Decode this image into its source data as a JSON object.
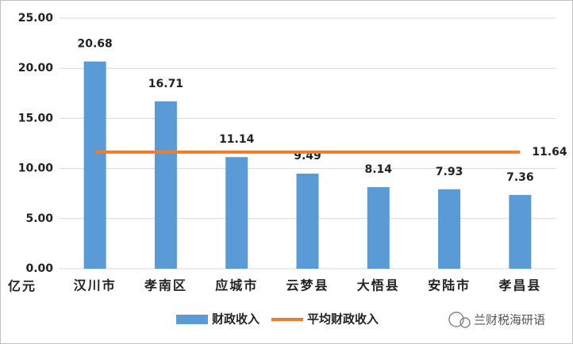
{
  "chart_data": {
    "type": "bar",
    "ylabel": "亿元",
    "categories": [
      "汉川市",
      "孝南区",
      "应城市",
      "云梦县",
      "大悟县",
      "安陆市",
      "孝昌县"
    ],
    "series": [
      {
        "name": "财政收入",
        "type": "bar",
        "color": "#5b9bd5",
        "values": [
          20.68,
          16.71,
          11.14,
          9.49,
          8.14,
          7.93,
          7.36
        ]
      },
      {
        "name": "平均财政收入",
        "type": "line",
        "color": "#ed7d31",
        "values": [
          11.64,
          11.64,
          11.64,
          11.64,
          11.64,
          11.64,
          11.64
        ]
      }
    ],
    "ylim": [
      0,
      25
    ],
    "yticks": [
      {
        "value": 0,
        "label": "0.00"
      },
      {
        "value": 5,
        "label": "5.00"
      },
      {
        "value": 10,
        "label": "10.00"
      },
      {
        "value": 15,
        "label": "15.00"
      },
      {
        "value": 20,
        "label": "20.00"
      },
      {
        "value": 25,
        "label": "25.00"
      }
    ],
    "grid": true,
    "legend": "bottom",
    "watermark": "兰财税海研语"
  }
}
